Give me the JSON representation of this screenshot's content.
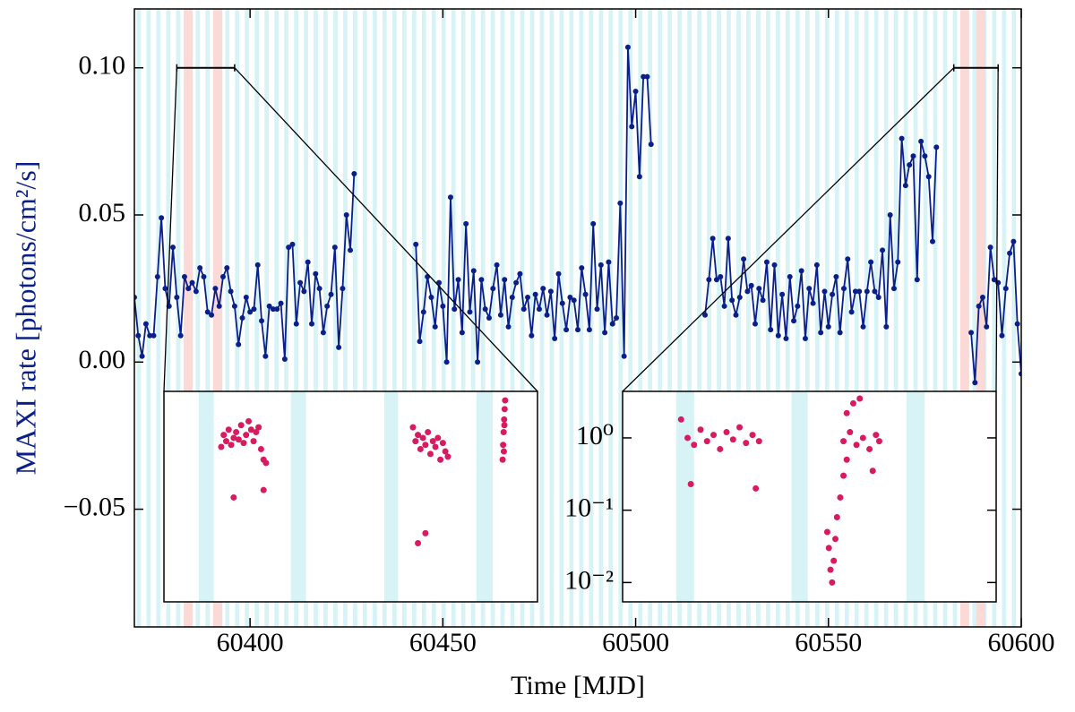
{
  "chart_data": [
    {
      "type": "line",
      "xlabel": "Time [MJD]",
      "ylabel": "MAXI rate [photons/cm²/s]",
      "xlim": [
        60370,
        60600
      ],
      "ylim": [
        -0.09,
        0.12
      ],
      "xticks": [
        60400,
        60450,
        60500,
        60550,
        60600
      ],
      "yticks": [
        {
          "value": -0.05,
          "label": "−0.05"
        },
        {
          "value": 0,
          "label": "0.00"
        },
        {
          "value": 0.05,
          "label": "0.05"
        },
        {
          "value": 0.1,
          "label": "0.10"
        }
      ],
      "zoom_level": 0.1,
      "periodic_bands": {
        "color": "#d7f3f5",
        "start": 60370.6,
        "period": 2.55,
        "width": 1.1
      },
      "bands": {
        "color": "#fbd9d6",
        "spans": [
          [
            60382.8,
            60385.1
          ],
          [
            60390.4,
            60392.8
          ],
          [
            60584.2,
            60586.5
          ],
          [
            60588.4,
            60590.7
          ]
        ]
      },
      "series": [
        {
          "color": "#0b1f8a",
          "x": [
            60370,
            60371,
            60372,
            60373,
            60374,
            60375,
            60376,
            60377,
            60378,
            60379,
            60380,
            60381,
            60382,
            60383,
            60384,
            60385,
            60386,
            60387,
            60388,
            60389,
            60390,
            60391,
            60392,
            60393,
            60394,
            60395,
            60396,
            60397,
            60398,
            60399,
            60400,
            60401,
            60402,
            60403,
            60404,
            60405,
            60406,
            60407,
            60408,
            60409,
            60410,
            60411,
            60412,
            60413,
            60414,
            60415,
            60416,
            60417,
            60418,
            60419,
            60420,
            60421,
            60422,
            60423,
            60424,
            60425,
            60426,
            60427
          ],
          "values": [
            0.022,
            0.009,
            0.002,
            0.013,
            0.009,
            0.009,
            0.029,
            0.049,
            0.025,
            0.019,
            0.039,
            0.022,
            0.009,
            0.029,
            0.025,
            0.027,
            0.024,
            0.032,
            0.029,
            0.017,
            0.016,
            0.025,
            0.019,
            0.029,
            0.032,
            0.024,
            0.019,
            0.006,
            0.015,
            0.022,
            0.017,
            0.018,
            0.033,
            0.014,
            0.002,
            0.019,
            0.018,
            0.018,
            0.02,
            0.001,
            0.039,
            0.04,
            0.013,
            0.027,
            0.024,
            0.034,
            0.013,
            0.03,
            0.025,
            0.01,
            0.019,
            0.023,
            0.039,
            0.005,
            0.025,
            0.05,
            0.038,
            0.064
          ]
        },
        {
          "color": "#0b1f8a",
          "x": [
            60443,
            60444,
            60445,
            60446,
            60447,
            60448,
            60449,
            60450,
            60451,
            60452,
            60453,
            60454,
            60455,
            60456,
            60457,
            60458,
            60459,
            60460,
            60461,
            60462,
            60463,
            60464,
            60465,
            60466,
            60467,
            60468,
            60469,
            60470,
            60471,
            60472,
            60473,
            60474,
            60475,
            60476,
            60477,
            60478,
            60479,
            60480,
            60481,
            60482,
            60483,
            60484,
            60485,
            60486,
            60487,
            60488,
            60489,
            60490,
            60491,
            60492,
            60493,
            60494,
            60495,
            60496,
            60497,
            60498,
            60499,
            60500,
            60501,
            60502,
            60503,
            60504
          ],
          "values": [
            0.04,
            0.007,
            0.017,
            0.029,
            0.022,
            0.012,
            0.027,
            0.019,
            0.0,
            0.056,
            0.018,
            0.028,
            0.01,
            0.047,
            0.017,
            0.031,
            0.0,
            0.028,
            0.018,
            0.015,
            0.025,
            0.033,
            0.016,
            0.028,
            0.012,
            0.022,
            0.027,
            0.03,
            0.018,
            0.022,
            0.009,
            0.023,
            0.018,
            0.025,
            0.016,
            0.024,
            0.008,
            0.03,
            0.02,
            0.011,
            0.022,
            0.021,
            0.011,
            0.032,
            0.023,
            0.011,
            0.047,
            0.018,
            0.033,
            0.01,
            0.034,
            0.013,
            0.015,
            0.054,
            0.002,
            0.107,
            0.08,
            0.092,
            0.063,
            0.097,
            0.097,
            0.074
          ]
        },
        {
          "color": "#0b1f8a",
          "x": [
            60518,
            60519,
            60520,
            60521,
            60522,
            60523,
            60524,
            60525,
            60526,
            60527,
            60528,
            60529,
            60530,
            60531,
            60532,
            60533,
            60534,
            60535,
            60536,
            60537,
            60538,
            60539,
            60540,
            60541,
            60542,
            60543,
            60544,
            60545,
            60546,
            60547,
            60548,
            60549,
            60550,
            60551,
            60552,
            60553,
            60554,
            60555,
            60556,
            60557,
            60558,
            60559,
            60560,
            60561,
            60562,
            60563,
            60564,
            60565,
            60566,
            60567,
            60568,
            60569,
            60570,
            60571,
            60572,
            60573,
            60574,
            60575,
            60576,
            60577,
            60578
          ],
          "values": [
            0.016,
            0.028,
            0.042,
            0.028,
            0.029,
            0.019,
            0.042,
            0.021,
            0.016,
            0.022,
            0.035,
            0.024,
            0.026,
            0.013,
            0.025,
            0.021,
            0.034,
            0.011,
            0.033,
            0.009,
            0.023,
            0.008,
            0.029,
            0.014,
            0.019,
            0.031,
            0.008,
            0.025,
            0.02,
            0.033,
            0.01,
            0.024,
            0.012,
            0.023,
            0.029,
            0.01,
            0.025,
            0.035,
            0.017,
            0.024,
            0.024,
            0.012,
            0.024,
            0.034,
            0.024,
            0.022,
            0.038,
            0.012,
            0.05,
            0.025,
            0.034,
            0.076,
            0.06,
            0.067,
            0.07,
            0.028,
            0.075,
            0.07,
            0.063,
            0.041,
            0.073
          ]
        },
        {
          "color": "#0b1f8a",
          "x": [
            60587,
            60588,
            60589,
            60590,
            60591,
            60592,
            60593,
            60594,
            60595,
            60596,
            60597,
            60598,
            60599,
            60600
          ],
          "values": [
            0.01,
            -0.007,
            0.019,
            0.022,
            0.012,
            0.039,
            0.028,
            0.027,
            0.009,
            0.025,
            0.037,
            0.041,
            0.013,
            -0.004
          ]
        }
      ]
    },
    {
      "type": "scatter",
      "yscale": "log",
      "xlim": [
        60381,
        60396
      ],
      "ylim": [
        0.0054,
        4.4
      ],
      "bands": {
        "color": "#d7f3f5",
        "spans": [
          [
            60382.4,
            60383.0
          ],
          [
            60386.1,
            60386.7
          ],
          [
            60389.85,
            60390.4
          ],
          [
            60393.55,
            60394.2
          ]
        ]
      },
      "series": [
        {
          "color": "#d81b60",
          "x": [
            60383.3,
            60383.4,
            60383.5,
            60383.6,
            60383.7,
            60383.8,
            60383.9,
            60384.0,
            60384.1,
            60384.2,
            60384.3,
            60384.4,
            60384.5,
            60384.6,
            60384.7,
            60384.8,
            60384.9,
            60385.0,
            60385.1,
            60383.8,
            60385.0,
            60391.0,
            60391.1,
            60391.2,
            60391.3,
            60391.4,
            60391.5,
            60391.6,
            60391.7,
            60391.8,
            60391.9,
            60392.0,
            60392.1,
            60392.2,
            60392.3,
            60392.4,
            60391.2,
            60391.5,
            60394.6,
            60394.62,
            60394.64,
            60394.66,
            60394.68,
            60394.7,
            60394.65,
            60394.67
          ],
          "values": [
            0.75,
            1.1,
            0.9,
            1.3,
            0.8,
            1.0,
            1.2,
            0.95,
            1.5,
            0.85,
            1.1,
            1.7,
            1.3,
            0.9,
            1.2,
            1.4,
            0.7,
            0.5,
            0.45,
            0.15,
            0.19,
            1.4,
            0.9,
            1.1,
            0.7,
            1.0,
            0.8,
            1.2,
            0.6,
            0.9,
            0.75,
            1.0,
            0.5,
            0.85,
            0.65,
            0.55,
            0.035,
            0.048,
            0.5,
            0.8,
            1.2,
            1.8,
            2.5,
            3.3,
            0.65,
            1.5
          ]
        }
      ]
    },
    {
      "type": "scatter",
      "yscale": "log",
      "xlim": [
        60582.5,
        60594
      ],
      "ylim": [
        0.0054,
        4.4
      ],
      "yticks": [
        {
          "value": 0.01,
          "label": "10⁻²"
        },
        {
          "value": 0.1,
          "label": "10⁻¹"
        },
        {
          "value": 1,
          "label": "10⁰"
        }
      ],
      "bands": {
        "color": "#d7f3f5",
        "spans": [
          [
            60584.15,
            60584.7
          ],
          [
            60587.7,
            60588.2
          ],
          [
            60591.24,
            60591.8
          ]
        ]
      },
      "series": [
        {
          "color": "#d81b60",
          "x": [
            60584.3,
            60584.5,
            60584.7,
            60584.9,
            60585.1,
            60585.3,
            60585.5,
            60585.7,
            60585.9,
            60586.1,
            60586.3,
            60586.5,
            60586.7,
            60584.6,
            60586.6,
            60588.8,
            60588.85,
            60588.9,
            60588.95,
            60589.0,
            60589.05,
            60589.1,
            60589.2,
            60589.3,
            60589.4,
            60589.3,
            60589.5,
            60589.7,
            60589.9,
            60590.1,
            60590.3,
            60590.4,
            60589.6,
            60589.8,
            60590.2,
            60589.4
          ],
          "values": [
            1.8,
            1.0,
            0.8,
            1.3,
            0.9,
            1.1,
            0.7,
            1.2,
            0.95,
            1.4,
            0.85,
            1.1,
            0.9,
            0.23,
            0.2,
            0.05,
            0.03,
            0.015,
            0.01,
            0.02,
            0.04,
            0.08,
            0.15,
            0.3,
            0.5,
            0.9,
            1.2,
            0.8,
            1.0,
            0.7,
            1.1,
            0.9,
            3.0,
            3.5,
            0.35,
            2.2
          ]
        }
      ]
    }
  ]
}
